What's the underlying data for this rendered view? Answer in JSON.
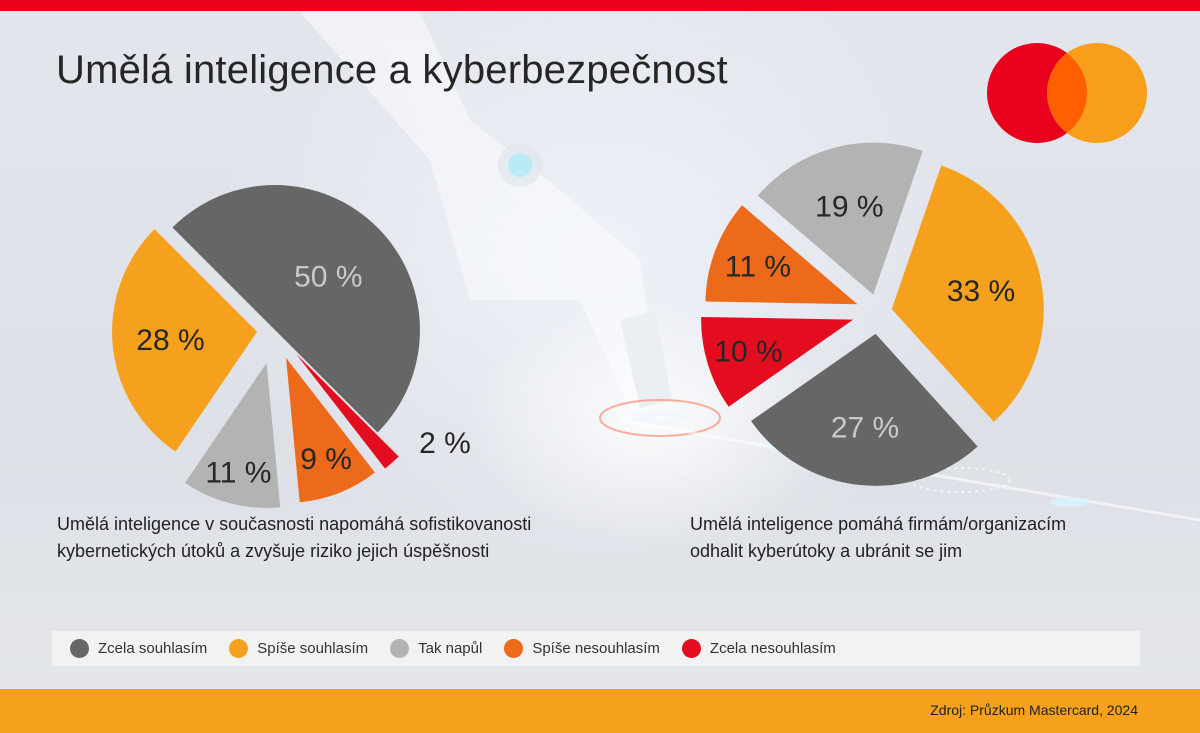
{
  "header": {
    "title": "Umělá inteligence a kyberbezpečnost"
  },
  "colors": {
    "brand_red": "#e8001c",
    "brand_orange": "#f5a11e",
    "logo_overlap": "#ff5f00",
    "zcela_souhlasim": "#666666",
    "spise_souhlasim": "#f5a11e",
    "tak_napul": "#b3b3b3",
    "spise_nesouhlasim": "#ec6a1a",
    "zcela_nesouhlasim": "#e30d1f"
  },
  "logo": {
    "name": "mastercard-logo"
  },
  "chart_data": [
    {
      "type": "pie",
      "caption_line1": "Umělá inteligence v současnosti napomáhá sofistikovanosti",
      "caption_line2": "kybernetických útoků a zvyšuje riziko jejich úspěšnosti",
      "slices": [
        {
          "key": "zcela_souhlasim",
          "value": 50,
          "label": "50 %"
        },
        {
          "key": "spise_souhlasim",
          "value": 28,
          "label": "28 %"
        },
        {
          "key": "tak_napul",
          "value": 11,
          "label": "11 %"
        },
        {
          "key": "spise_nesouhlasim",
          "value": 9,
          "label": "9 %"
        },
        {
          "key": "zcela_nesouhlasim",
          "value": 2,
          "label": "2 %"
        }
      ]
    },
    {
      "type": "pie",
      "caption_line1": "Umělá inteligence pomáhá firmám/organizacím",
      "caption_line2": "odhalit kyberútoky a ubránit se jim",
      "slices": [
        {
          "key": "zcela_souhlasim",
          "value": 27,
          "label": "27 %"
        },
        {
          "key": "spise_souhlasim",
          "value": 33,
          "label": "33 %"
        },
        {
          "key": "tak_napul",
          "value": 19,
          "label": "19 %"
        },
        {
          "key": "spise_nesouhlasim",
          "value": 11,
          "label": "11 %"
        },
        {
          "key": "zcela_nesouhlasim",
          "value": 10,
          "label": "10 %"
        }
      ]
    }
  ],
  "legend": {
    "items": [
      {
        "key": "zcela_souhlasim",
        "label": "Zcela souhlasím"
      },
      {
        "key": "spise_souhlasim",
        "label": "Spíše souhlasím"
      },
      {
        "key": "tak_napul",
        "label": "Tak napůl"
      },
      {
        "key": "spise_nesouhlasim",
        "label": "Spíše nesouhlasím"
      },
      {
        "key": "zcela_nesouhlasim",
        "label": "Zcela nesouhlasím"
      }
    ]
  },
  "footer": {
    "source": "Zdroj: Průzkum Mastercard, 2024"
  }
}
